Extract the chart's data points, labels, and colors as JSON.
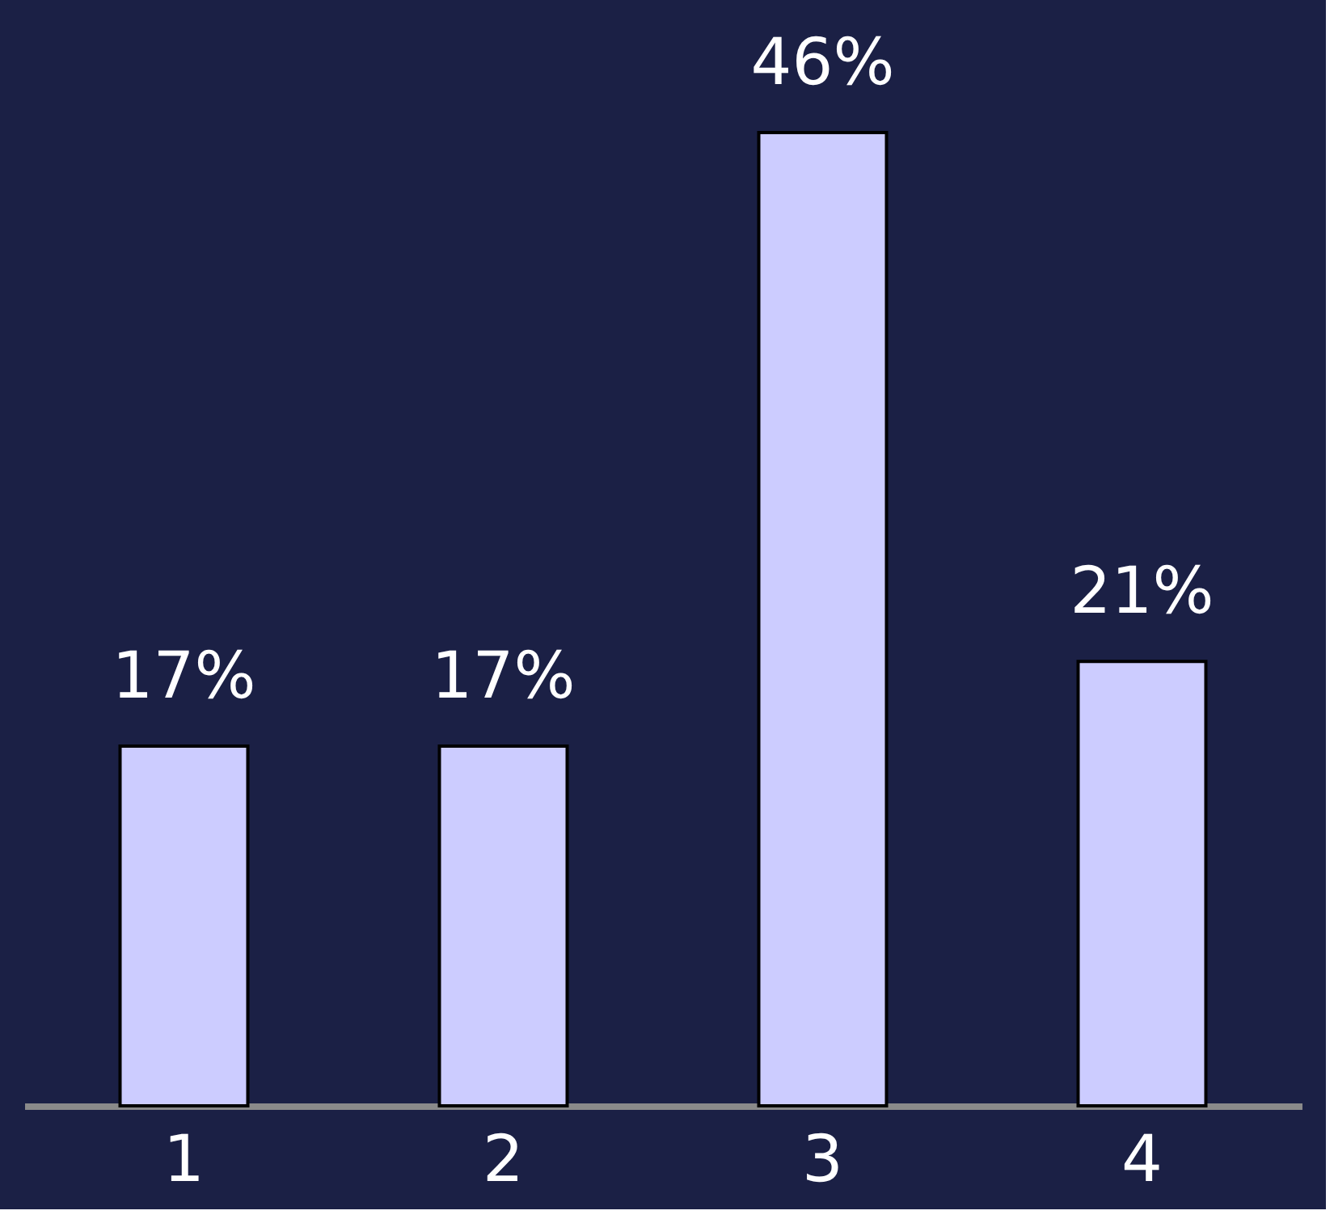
{
  "chart_data": {
    "type": "bar",
    "categories": [
      "1",
      "2",
      "3",
      "4"
    ],
    "values": [
      17,
      17,
      46,
      21
    ],
    "value_labels": [
      "17%",
      "17%",
      "46%",
      "21%"
    ],
    "color": "#ccccff"
  }
}
